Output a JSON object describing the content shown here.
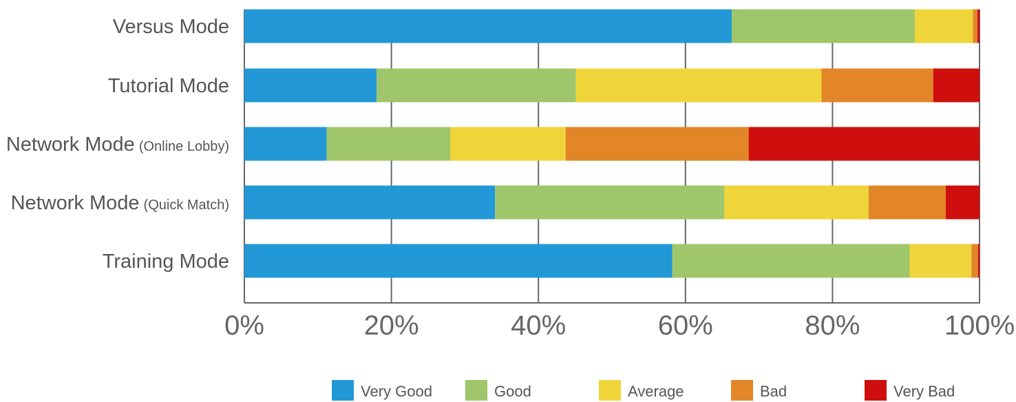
{
  "chart_data": {
    "type": "bar",
    "orientation": "horizontal",
    "stacked": true,
    "percent": true,
    "categories": [
      {
        "main": "Versus Mode",
        "sub": ""
      },
      {
        "main": "Tutorial Mode",
        "sub": ""
      },
      {
        "main": "Network Mode",
        "sub": "(Online Lobby)"
      },
      {
        "main": "Network Mode",
        "sub": "(Quick Match)"
      },
      {
        "main": "Training Mode",
        "sub": ""
      }
    ],
    "series": [
      {
        "name": "Very Good",
        "color": "#2398d6",
        "values": [
          66.3,
          18.0,
          11.2,
          34.1,
          58.2
        ]
      },
      {
        "name": "Good",
        "color": "#9fc66a",
        "values": [
          24.9,
          27.1,
          16.8,
          31.2,
          32.3
        ]
      },
      {
        "name": "Average",
        "color": "#efd53a",
        "values": [
          7.9,
          33.4,
          15.7,
          19.6,
          8.4
        ]
      },
      {
        "name": "Bad",
        "color": "#e28628",
        "values": [
          0.6,
          15.2,
          24.9,
          10.5,
          0.9
        ]
      },
      {
        "name": "Very Bad",
        "color": "#cf0f0e",
        "values": [
          0.3,
          6.3,
          31.4,
          4.6,
          0.2
        ]
      }
    ],
    "xticks": [
      "0%",
      "20%",
      "40%",
      "60%",
      "80%",
      "100%"
    ],
    "xlim": [
      0,
      100
    ],
    "grid": true,
    "legend": "bottom"
  }
}
